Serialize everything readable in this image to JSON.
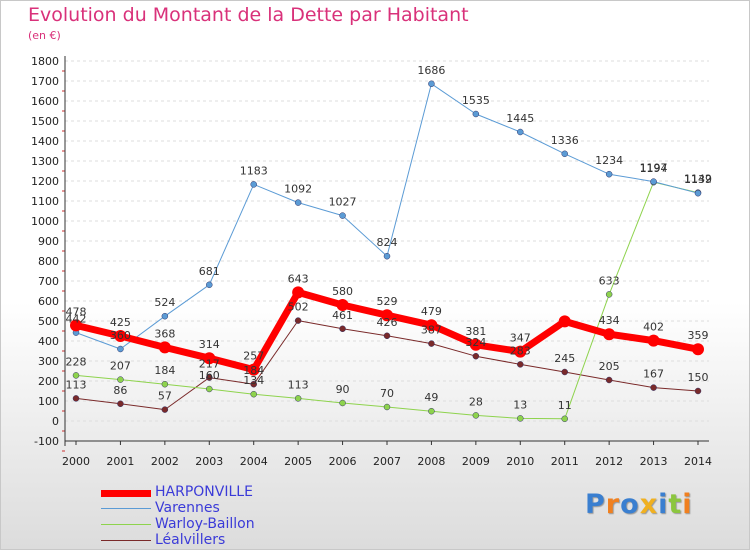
{
  "title": "Evolution du Montant de la Dette par Habitant",
  "subtitle": "(en €)",
  "logo": {
    "text": "Proxiti",
    "colors": [
      "#3a7fd0",
      "#f08020",
      "#3a7fd0",
      "#f0b020",
      "#3a7fd0",
      "#8cc63f",
      "#f08020"
    ]
  },
  "chart_data": {
    "type": "line",
    "title": "Evolution du Montant de la Dette par Habitant",
    "ylabel": "(en €)",
    "xlabel": "",
    "x": [
      "2000",
      "2001",
      "2002",
      "2003",
      "2004",
      "2005",
      "2006",
      "2007",
      "2008",
      "2009",
      "2010",
      "2011",
      "2012",
      "2013",
      "2014"
    ],
    "yticks": [
      "-100",
      "0",
      "100",
      "200",
      "300",
      "400",
      "500",
      "600",
      "700",
      "800",
      "900",
      "1000",
      "1100",
      "1200",
      "1300",
      "1400",
      "1500",
      "1600",
      "1700",
      "1800"
    ],
    "ylim": [
      -100,
      1800
    ],
    "legend_position": "bottom-left",
    "series": [
      {
        "name": "HARPONVILLE",
        "color": "#ff0000",
        "width": 7,
        "values": [
          478,
          425,
          368,
          314,
          257,
          643,
          580,
          529,
          479,
          381,
          347,
          498,
          434,
          402,
          359
        ],
        "labels": [
          "478",
          "425",
          "368",
          "314",
          "257",
          "643",
          "580",
          "529",
          "479",
          "381",
          "347",
          "",
          "434",
          "402",
          "359"
        ]
      },
      {
        "name": "Varennes",
        "color": "#5b9bd5",
        "width": 1,
        "values": [
          442,
          360,
          524,
          681,
          1183,
          1092,
          1027,
          824,
          1686,
          1535,
          1445,
          1336,
          1234,
          1197,
          1139
        ],
        "labels": [
          "442",
          "360",
          "524",
          "681",
          "1183",
          "1092",
          "1027",
          "824",
          "1686",
          "1535",
          "1445",
          "1336",
          "1234",
          "1197",
          "1139"
        ]
      },
      {
        "name": "Warloy-Baillon",
        "color": "#8ed34d",
        "width": 1,
        "values": [
          228,
          207,
          184,
          160,
          134,
          113,
          90,
          70,
          49,
          28,
          13,
          11,
          633,
          1194,
          1142
        ],
        "labels": [
          "228",
          "207",
          "184",
          "160",
          "134",
          "113",
          "90",
          "70",
          "49",
          "28",
          "13",
          "11",
          "633",
          "1194",
          "1142"
        ]
      },
      {
        "name": "Léalvillers",
        "color": "#7a2a2a",
        "width": 1,
        "values": [
          113,
          86,
          57,
          217,
          184,
          502,
          461,
          426,
          387,
          324,
          283,
          245,
          205,
          167,
          150
        ],
        "labels": [
          "113",
          "86",
          "57",
          "217",
          "184",
          "502",
          "461",
          "426",
          "387",
          "324",
          "283",
          "245",
          "205",
          "167",
          "150"
        ]
      }
    ]
  }
}
